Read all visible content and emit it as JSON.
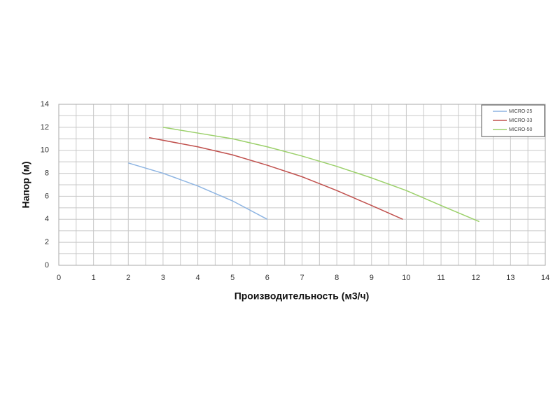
{
  "chart_data": {
    "type": "line",
    "x_label": "Производительность (м3/ч)",
    "y_label": "Напор (м)",
    "xlim": [
      0,
      14
    ],
    "xticks": [
      0,
      1,
      2,
      3,
      4,
      5,
      6,
      7,
      8,
      9,
      10,
      11,
      12,
      13,
      14
    ],
    "ylim": [
      0,
      14
    ],
    "yticks": [
      0,
      2,
      4,
      6,
      8,
      10,
      12,
      14
    ],
    "grid": true,
    "minor_grid": true,
    "legend": "upper right",
    "series": [
      {
        "name": "MICRO-25",
        "color": "#8db4e2",
        "x": [
          2,
          3,
          4,
          5,
          6
        ],
        "values": [
          8.9,
          8.0,
          6.9,
          5.6,
          4.0
        ]
      },
      {
        "name": "MICRO-33",
        "color": "#c0504d",
        "x": [
          2.6,
          4,
          5,
          6,
          7,
          8,
          9,
          9.9
        ],
        "values": [
          11.1,
          10.3,
          9.6,
          8.7,
          7.7,
          6.5,
          5.2,
          4.0
        ]
      },
      {
        "name": "MICRO-50",
        "color": "#9bd06a",
        "x": [
          3,
          4,
          5,
          6,
          7,
          8,
          9,
          10,
          11,
          12.1
        ],
        "values": [
          12.0,
          11.5,
          11.0,
          10.3,
          9.5,
          8.6,
          7.6,
          6.5,
          5.2,
          3.8
        ]
      }
    ]
  }
}
